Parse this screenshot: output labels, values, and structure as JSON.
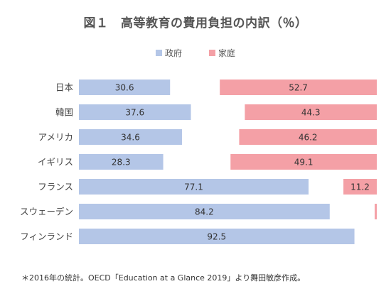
{
  "chart_data": {
    "type": "bar",
    "title": "図１　高等教育の費用負担の内訳（％）",
    "categories": [
      "日本",
      "韓国",
      "アメリカ",
      "イギリス",
      "フランス",
      "スウェーデン",
      "フィンランド"
    ],
    "series": [
      {
        "name": "政府",
        "color": "#b4c6e7",
        "values": [
          30.6,
          37.6,
          34.6,
          28.3,
          77.1,
          84.2,
          92.5
        ]
      },
      {
        "name": "家庭",
        "color": "#f4a0a6",
        "values": [
          52.7,
          44.3,
          46.2,
          49.1,
          11.2,
          0.7,
          null
        ]
      }
    ],
    "value_labels": {
      "政府": [
        "30.6",
        "37.6",
        "34.6",
        "28.3",
        "77.1",
        "84.2",
        "92.5"
      ],
      "家庭": [
        "52.7",
        "44.3",
        "46.2",
        "49.1",
        "11.2",
        "",
        ""
      ]
    },
    "xlim": [
      0,
      100
    ],
    "grid": false,
    "legend_position": "top-center"
  },
  "footnote": "＊2016年の統計。OECD「Education at a Glance 2019」より舞田敏彦作成。"
}
